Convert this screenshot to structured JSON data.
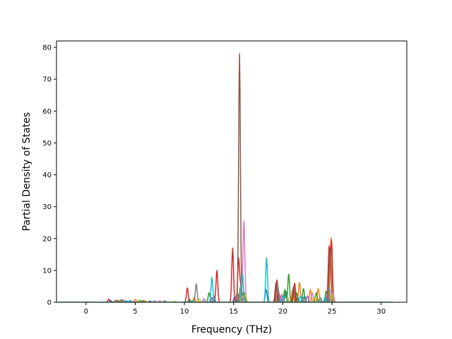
{
  "chart_data": {
    "type": "line",
    "title": "",
    "xlabel": "Frequency (THz)",
    "ylabel": "Partial Density of States",
    "xlim": [
      -3.0,
      32.6
    ],
    "ylim": [
      0,
      82
    ],
    "xticks": [
      0,
      5,
      10,
      15,
      20,
      25,
      30
    ],
    "yticks": [
      0,
      10,
      20,
      30,
      40,
      50,
      60,
      70,
      80
    ],
    "grid": false,
    "legend": "none",
    "series": [
      {
        "color": "#1f77b4",
        "peaks": [
          [
            2.5,
            0.6
          ],
          [
            4.5,
            0.5
          ],
          [
            6.5,
            0.4
          ],
          [
            12.0,
            1.0
          ],
          [
            15.2,
            1.5
          ],
          [
            18.3,
            4.0
          ],
          [
            19.5,
            1.5
          ],
          [
            20.3,
            3.5
          ],
          [
            21.5,
            1.5
          ],
          [
            22.2,
            2.0
          ],
          [
            23.8,
            1.5
          ],
          [
            24.6,
            3.0
          ],
          [
            25.0,
            2.0
          ]
        ]
      },
      {
        "color": "#ff7f0e",
        "peaks": [
          [
            3.0,
            0.5
          ],
          [
            5.0,
            0.9
          ],
          [
            6.0,
            0.5
          ],
          [
            11.0,
            1.5
          ],
          [
            15.3,
            2.5
          ],
          [
            15.9,
            7.0
          ],
          [
            19.6,
            3.0
          ],
          [
            21.0,
            4.0
          ],
          [
            21.7,
            6.2
          ],
          [
            22.8,
            4.0
          ],
          [
            23.6,
            4.3
          ],
          [
            24.9,
            20.2
          ]
        ]
      },
      {
        "color": "#2ca02c",
        "peaks": [
          [
            3.5,
            0.7
          ],
          [
            5.5,
            0.6
          ],
          [
            10.5,
            1.0
          ],
          [
            12.5,
            3.0
          ],
          [
            15.7,
            5.0
          ],
          [
            16.0,
            3.0
          ],
          [
            20.2,
            4.0
          ],
          [
            20.6,
            8.8
          ],
          [
            21.4,
            3.0
          ],
          [
            22.1,
            4.3
          ],
          [
            23.4,
            3.0
          ],
          [
            24.4,
            3.5
          ]
        ]
      },
      {
        "color": "#d62728",
        "peaks": [
          [
            2.3,
            1.0
          ],
          [
            3.2,
            0.6
          ],
          [
            10.3,
            4.5
          ],
          [
            13.3,
            10.0
          ],
          [
            14.9,
            17.0
          ],
          [
            15.5,
            13.5
          ],
          [
            15.7,
            5.0
          ],
          [
            19.4,
            7.0
          ],
          [
            21.2,
            6.0
          ],
          [
            24.7,
            17.2
          ],
          [
            24.95,
            19.2
          ]
        ]
      },
      {
        "color": "#9467bd",
        "peaks": [
          [
            4.0,
            0.5
          ],
          [
            7.0,
            0.4
          ],
          [
            12.8,
            1.5
          ],
          [
            15.1,
            2.0
          ],
          [
            16.1,
            3.0
          ],
          [
            19.8,
            2.0
          ],
          [
            22.5,
            2.0
          ],
          [
            24.5,
            2.5
          ]
        ]
      },
      {
        "color": "#8c564b",
        "peaks": [
          [
            3.7,
            0.8
          ],
          [
            5.8,
            0.5
          ],
          [
            15.6,
            78.0
          ],
          [
            19.3,
            6.0
          ],
          [
            21.1,
            5.0
          ],
          [
            24.8,
            17.0
          ]
        ]
      },
      {
        "color": "#e377c2",
        "peaks": [
          [
            4.8,
            0.4
          ],
          [
            7.5,
            0.5
          ],
          [
            12.0,
            0.8
          ],
          [
            15.8,
            6.0
          ],
          [
            16.05,
            25.5
          ],
          [
            19.9,
            2.5
          ],
          [
            23.0,
            3.0
          ],
          [
            25.1,
            3.0
          ]
        ]
      },
      {
        "color": "#7f7f7f",
        "peaks": [
          [
            3.0,
            0.6
          ],
          [
            8.0,
            0.5
          ],
          [
            11.2,
            5.8
          ],
          [
            13.0,
            2.0
          ],
          [
            15.4,
            3.0
          ],
          [
            19.5,
            5.0
          ],
          [
            22.0,
            1.5
          ],
          [
            24.7,
            5.0
          ]
        ]
      },
      {
        "color": "#bcbd22",
        "peaks": [
          [
            5.3,
            0.5
          ],
          [
            9.0,
            0.3
          ],
          [
            11.5,
            1.0
          ],
          [
            15.9,
            2.0
          ],
          [
            16.2,
            2.5
          ],
          [
            20.5,
            1.5
          ],
          [
            23.2,
            1.5
          ],
          [
            25.0,
            2.5
          ]
        ]
      },
      {
        "color": "#17becf",
        "peaks": [
          [
            4.2,
            0.4
          ],
          [
            10.8,
            0.5
          ],
          [
            12.8,
            7.8
          ],
          [
            15.9,
            9.0
          ],
          [
            18.35,
            14.0
          ],
          [
            20.0,
            2.0
          ],
          [
            21.8,
            2.0
          ],
          [
            24.3,
            1.5
          ]
        ]
      }
    ]
  }
}
